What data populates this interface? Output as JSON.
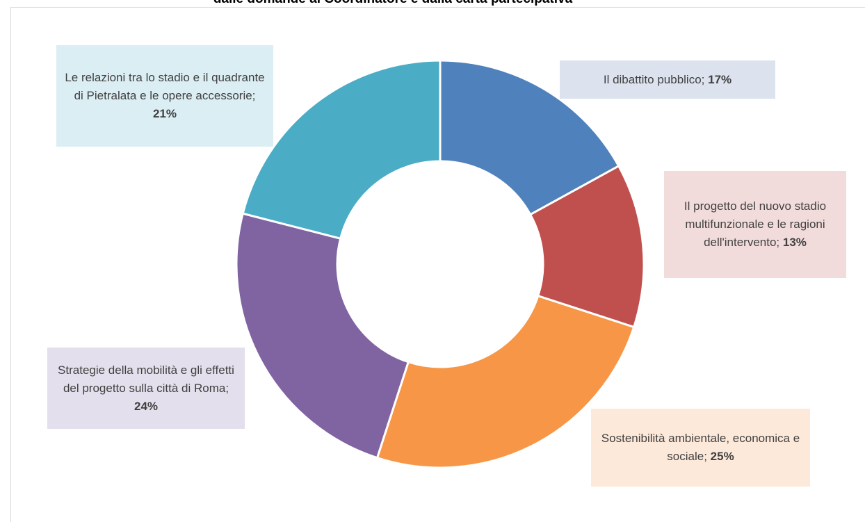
{
  "chart_data": {
    "type": "donut",
    "title": "dalle domande al Coordinatore e dalla carta partecipativa",
    "categories": [
      "Il dibattito pubblico;",
      "Il progetto del nuovo stadio multifunzionale e le ragioni dell'intervento;",
      "Sostenibilità ambientale, economica e sociale;",
      "Strategie della mobilità e gli effetti del progetto sulla città di Roma;",
      "Le relazioni tra lo stadio e il quadrante di Pietralata e le opere accessorie;"
    ],
    "values": [
      17,
      13,
      25,
      24,
      21
    ],
    "value_labels": [
      "17%",
      "13%",
      "25%",
      "24%",
      "21%"
    ],
    "colors": [
      "#4f81bd",
      "#c0504d",
      "#f79646",
      "#8064a2",
      "#4bacc6"
    ]
  }
}
